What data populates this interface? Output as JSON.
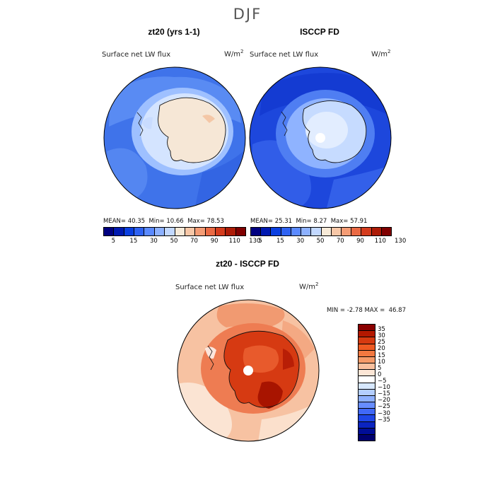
{
  "season": "DJF",
  "panels": {
    "left": {
      "title": "zt20 (yrs 1-1)",
      "variable": "Surface net LW flux",
      "units_base": "W/m",
      "units_exp": "2",
      "stats": {
        "mean_label": "MEAN=",
        "mean": "40.35",
        "min_label": "Min=",
        "min": "10.66",
        "max_label": "Max=",
        "max": "78.53"
      }
    },
    "right": {
      "title": "ISCCP FD",
      "variable": "Surface net LW flux",
      "units_base": "W/m",
      "units_exp": "2",
      "stats": {
        "mean_label": "MEAN=",
        "mean": "25.31",
        "min_label": "Min=",
        "min": "8.27",
        "max_label": "Max=",
        "max": "57.91"
      }
    },
    "diff": {
      "title": "zt20 - ISCCP FD",
      "variable": "Surface net LW flux",
      "units_base": "W/m",
      "units_exp": "2",
      "minmax": {
        "min_label": "MIN =",
        "min": "-2.78",
        "max_label": "MAX =",
        "max": "46.87"
      }
    }
  },
  "colorbar_abs": {
    "colors": [
      "#000080",
      "#0019b0",
      "#0a3fe0",
      "#2e62f2",
      "#5b8aff",
      "#8db1ff",
      "#c2d8ff",
      "#f7ead8",
      "#f7c7a7",
      "#f49c75",
      "#ea6a44",
      "#d43c1d",
      "#ad1c07",
      "#800000"
    ],
    "ticks": [
      "5",
      "15",
      "30",
      "50",
      "70",
      "90",
      "110",
      "130"
    ]
  },
  "colorbar_diff": {
    "colors": [
      "#8a0000",
      "#b41800",
      "#d63a10",
      "#ee5a22",
      "#f27840",
      "#f59a68",
      "#f9c09e",
      "#fce6d6",
      "#ffffff",
      "#d7e8ff",
      "#b4ceff",
      "#8eb0ff",
      "#678dff",
      "#4068f7",
      "#1f46e6",
      "#0b24c0",
      "#000d96",
      "#00006e"
    ],
    "ticks": [
      "35",
      "30",
      "25",
      "20",
      "15",
      "10",
      "5",
      "0",
      "−5",
      "−10",
      "−15",
      "−20",
      "−25",
      "−30",
      "−35"
    ]
  }
}
